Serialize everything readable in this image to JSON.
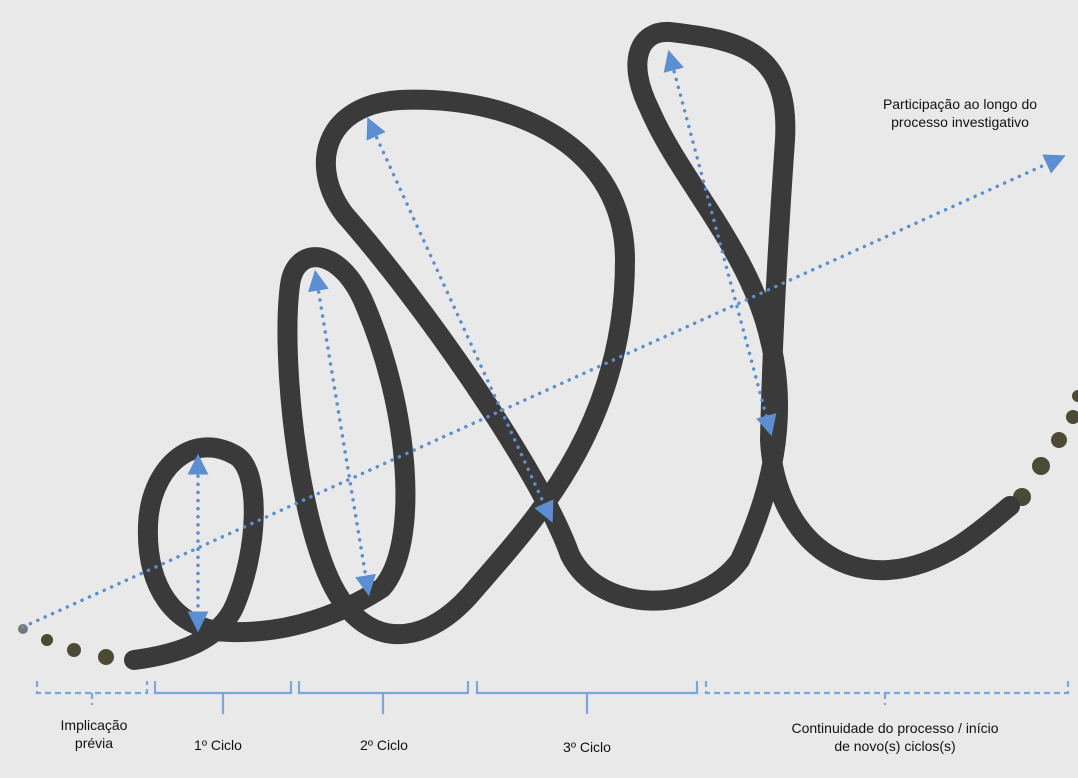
{
  "colors": {
    "background": "#e9e9e9",
    "curve": "#3a3a3a",
    "arrow": "#5b8fd0",
    "bracket": "#7aa7dc",
    "dot_start": "#777777",
    "dot_ochre": "#4b4a35"
  },
  "labels": {
    "participation": "Participação ao longo do\nprocesso investigativo",
    "prior": "Implicação\nprévia",
    "cycle1": "1º Ciclo",
    "cycle2": "2º Ciclo",
    "cycle3": "3º Ciclo",
    "continuity": "Continuidade do processo / início\nde novo(s) ciclos(s)"
  },
  "stages": [
    {
      "key": "prior",
      "style": "dashed"
    },
    {
      "key": "cycle1",
      "style": "solid"
    },
    {
      "key": "cycle2",
      "style": "solid"
    },
    {
      "key": "cycle3",
      "style": "solid"
    },
    {
      "key": "continuity",
      "style": "dashed"
    }
  ],
  "cycle_count": 3
}
